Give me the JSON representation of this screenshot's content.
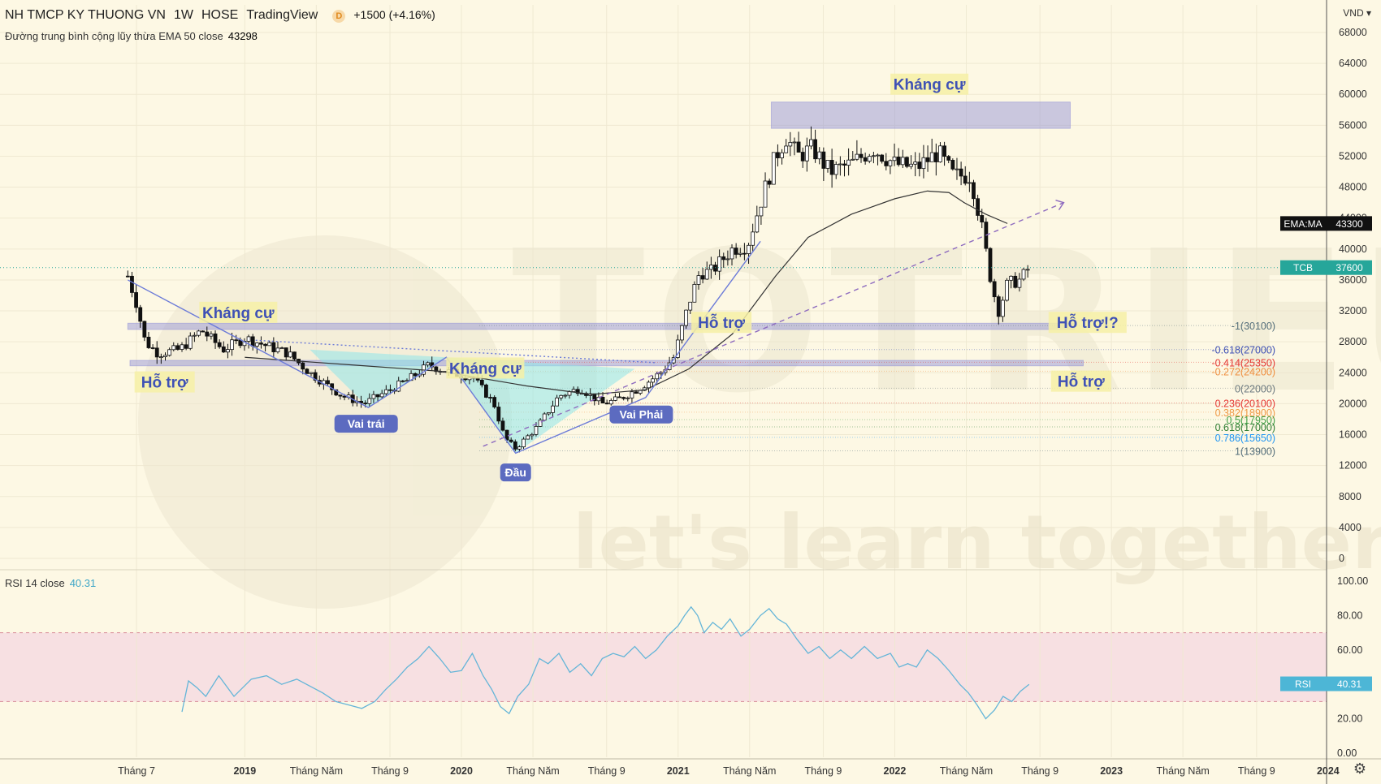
{
  "header": {
    "symbol": "NH TMCP KY THUONG VN",
    "interval": "1W",
    "exchange": "HOSE",
    "source": "TradingView",
    "badge": "D",
    "change": "+1500 (+4.16%)",
    "ema_label": "Đường trung bình cộng lũy thừa EMA 50 close",
    "ema_value": "43298",
    "rsi_label": "RSI 14 close",
    "rsi_value": "40.31",
    "currency": "VND",
    "settings_icon": "gear-icon"
  },
  "chart_data": [
    {
      "type": "candlestick",
      "title": "NH TMCP KY THUONG VN · 1W · HOSE",
      "y_ticks": [
        0,
        4000,
        8000,
        12000,
        16000,
        20000,
        24000,
        28000,
        32000,
        36000,
        40000,
        44000,
        48000,
        52000,
        56000,
        60000,
        64000,
        68000
      ],
      "ylim": [
        0,
        68000
      ],
      "x_ticks": [
        "Tháng 7",
        "2019",
        "Tháng Năm",
        "Tháng 9",
        "2020",
        "Tháng Năm",
        "Tháng 9",
        "2021",
        "Tháng Năm",
        "Tháng 9",
        "2022",
        "Tháng Năm",
        "Tháng 9",
        "2023",
        "Tháng Năm",
        "Tháng 9",
        "2024"
      ],
      "x_bold": [
        "2019",
        "2020",
        "2021",
        "2022",
        "2023",
        "2024"
      ],
      "price_anchors": [
        [
          2018.46,
          36500
        ],
        [
          2018.5,
          33000
        ],
        [
          2018.54,
          28000
        ],
        [
          2018.6,
          26500
        ],
        [
          2018.7,
          27000
        ],
        [
          2018.8,
          29500
        ],
        [
          2018.9,
          27000
        ],
        [
          2019.0,
          28500
        ],
        [
          2019.1,
          27500
        ],
        [
          2019.2,
          26500
        ],
        [
          2019.3,
          24000
        ],
        [
          2019.45,
          21000
        ],
        [
          2019.55,
          20000
        ],
        [
          2019.65,
          21500
        ],
        [
          2019.75,
          23000
        ],
        [
          2019.85,
          25000
        ],
        [
          2019.95,
          24000
        ],
        [
          2020.05,
          23500
        ],
        [
          2020.15,
          20000
        ],
        [
          2020.2,
          15500
        ],
        [
          2020.25,
          14200
        ],
        [
          2020.35,
          17000
        ],
        [
          2020.45,
          21000
        ],
        [
          2020.55,
          22000
        ],
        [
          2020.65,
          20000
        ],
        [
          2020.72,
          20500
        ],
        [
          2020.82,
          22000
        ],
        [
          2020.92,
          24000
        ],
        [
          2020.98,
          26000
        ],
        [
          2021.05,
          33000
        ],
        [
          2021.1,
          37000
        ],
        [
          2021.15,
          37000
        ],
        [
          2021.25,
          40000
        ],
        [
          2021.32,
          40500
        ],
        [
          2021.38,
          46000
        ],
        [
          2021.45,
          52000
        ],
        [
          2021.5,
          54500
        ],
        [
          2021.55,
          52000
        ],
        [
          2021.62,
          53000
        ],
        [
          2021.7,
          50000
        ],
        [
          2021.8,
          51000
        ],
        [
          2021.9,
          53000
        ],
        [
          2022.0,
          51000
        ],
        [
          2022.1,
          50500
        ],
        [
          2022.2,
          52500
        ],
        [
          2022.27,
          49500
        ],
        [
          2022.35,
          49500
        ],
        [
          2022.4,
          43000
        ],
        [
          2022.45,
          35000
        ],
        [
          2022.48,
          32000
        ],
        [
          2022.52,
          35500
        ],
        [
          2022.58,
          36000
        ],
        [
          2022.62,
          37600
        ]
      ],
      "last_price": 37600,
      "current_price_label": "TCB",
      "current_price_value": "37600",
      "ema_tag_label": "EMA:MA",
      "ema_tag_value": "43300",
      "ema50": [
        [
          2019.0,
          26000
        ],
        [
          2019.5,
          25000
        ],
        [
          2019.9,
          24200
        ],
        [
          2020.3,
          22300
        ],
        [
          2020.6,
          21200
        ],
        [
          2020.85,
          21800
        ],
        [
          2021.05,
          24500
        ],
        [
          2021.25,
          29000
        ],
        [
          2021.45,
          36500
        ],
        [
          2021.6,
          41500
        ],
        [
          2021.8,
          44500
        ],
        [
          2022.0,
          46500
        ],
        [
          2022.15,
          47500
        ],
        [
          2022.25,
          47300
        ],
        [
          2022.32,
          46000
        ],
        [
          2022.42,
          44500
        ],
        [
          2022.52,
          43300
        ]
      ],
      "fibonacci": [
        {
          "label": "-1(30100)",
          "value": 30100,
          "color": "#546e7a"
        },
        {
          "label": "-0.618(27000)",
          "value": 27000,
          "color": "#3f51b5"
        },
        {
          "label": "-0.414(25350)",
          "value": 25350,
          "color": "#e53935"
        },
        {
          "label": "-0.272(24200)",
          "value": 24200,
          "color": "#ef8f40"
        },
        {
          "label": "0(22000)",
          "value": 22000,
          "color": "#6d7a80"
        },
        {
          "label": "0.236(20100)",
          "value": 20100,
          "color": "#e53935"
        },
        {
          "label": "0.382(18900)",
          "value": 18900,
          "color": "#ef9a47"
        },
        {
          "label": "0.5(17950)",
          "value": 17950,
          "color": "#43a047"
        },
        {
          "label": "0.618(17000)",
          "value": 17000,
          "color": "#2e7d32"
        },
        {
          "label": "0.786(15650)",
          "value": 15650,
          "color": "#2196f3"
        },
        {
          "label": "1(13900)",
          "value": 13900,
          "color": "#546e7a"
        }
      ],
      "zones": [
        {
          "from": 2018.46,
          "to": 2022.83,
          "low": 29600,
          "high": 30400,
          "color": "#8c8cd8"
        },
        {
          "from": 2018.47,
          "to": 2022.87,
          "low": 24900,
          "high": 25600,
          "color": "#8c8cd8"
        },
        {
          "from": 2021.43,
          "to": 2022.81,
          "low": 55600,
          "high": 59000,
          "color": "#8c8cd8"
        }
      ],
      "pattern_fills": [
        {
          "points": [
            [
              2019.3,
              27000
            ],
            [
              2019.57,
              19500
            ],
            [
              2019.8,
              23500
            ],
            [
              2019.93,
              26000
            ]
          ],
          "color": "#8fe6ea"
        },
        {
          "points": [
            [
              2019.93,
              26000
            ],
            [
              2020.25,
              13600
            ],
            [
              2020.8,
              24500
            ]
          ],
          "color": "#8fe6ea"
        }
      ],
      "pattern_lines": [
        {
          "points": [
            [
              2018.46,
              36000
            ],
            [
              2019.57,
              19500
            ],
            [
              2019.93,
              26000
            ],
            [
              2020.25,
              13600
            ],
            [
              2020.85,
              20800
            ],
            [
              2021.38,
              41000
            ]
          ],
          "color": "#6c7bd8",
          "dash": false
        },
        {
          "points": [
            [
              2019.05,
              28200
            ],
            [
              2020.9,
              25300
            ]
          ],
          "color": "#6c7bd8",
          "dash": "2,3"
        },
        {
          "points": [
            [
              2020.1,
              14500
            ],
            [
              2022.78,
              46000
            ]
          ],
          "color": "#8e6bbf",
          "dash": "6,5"
        }
      ],
      "annotations": [
        {
          "text": "Kháng cự",
          "x": 2022.16,
          "y": 61000,
          "style": "big"
        },
        {
          "text": "Kháng cự",
          "x": 2018.97,
          "y": 31500,
          "style": "big"
        },
        {
          "text": "Hỗ trợ",
          "x": 2018.63,
          "y": 22500,
          "style": "big"
        },
        {
          "text": "Kháng cự",
          "x": 2020.11,
          "y": 24300,
          "style": "big"
        },
        {
          "text": "Hỗ trợ",
          "x": 2021.2,
          "y": 30200,
          "style": "big"
        },
        {
          "text": "Hỗ trợ!?",
          "x": 2022.89,
          "y": 30200,
          "style": "big"
        },
        {
          "text": "Hỗ trợ",
          "x": 2022.86,
          "y": 22600,
          "style": "big"
        },
        {
          "text": "Vai trái",
          "x": 2019.56,
          "y": 17300,
          "style": "pill"
        },
        {
          "text": "Vai Phải",
          "x": 2020.83,
          "y": 18500,
          "style": "pill"
        },
        {
          "text": "Đầu",
          "x": 2020.25,
          "y": 11000,
          "style": "pill"
        }
      ],
      "watermark_text": "let's learn together",
      "watermark_brand": "TOTRIEU"
    },
    {
      "type": "line",
      "title": "RSI 14 close",
      "series_name": "RSI",
      "y_ticks": [
        "0.00",
        "20.00",
        "40.00",
        "60.00",
        "80.00",
        "100.00"
      ],
      "ylim": [
        0,
        100
      ],
      "band": [
        30,
        70
      ],
      "last_value": "40.31",
      "points": [
        [
          2018.71,
          24
        ],
        [
          2018.74,
          42
        ],
        [
          2018.78,
          38
        ],
        [
          2018.82,
          33
        ],
        [
          2018.88,
          45
        ],
        [
          2018.95,
          33
        ],
        [
          2019.03,
          43
        ],
        [
          2019.1,
          45
        ],
        [
          2019.17,
          40
        ],
        [
          2019.24,
          43
        ],
        [
          2019.3,
          39
        ],
        [
          2019.36,
          35
        ],
        [
          2019.42,
          30
        ],
        [
          2019.48,
          28
        ],
        [
          2019.54,
          26
        ],
        [
          2019.6,
          30
        ],
        [
          2019.65,
          37
        ],
        [
          2019.7,
          43
        ],
        [
          2019.75,
          50
        ],
        [
          2019.8,
          55
        ],
        [
          2019.85,
          62
        ],
        [
          2019.9,
          55
        ],
        [
          2019.95,
          47
        ],
        [
          2020.0,
          48
        ],
        [
          2020.05,
          58
        ],
        [
          2020.1,
          45
        ],
        [
          2020.14,
          37
        ],
        [
          2020.18,
          27
        ],
        [
          2020.22,
          23
        ],
        [
          2020.26,
          33
        ],
        [
          2020.31,
          40
        ],
        [
          2020.36,
          55
        ],
        [
          2020.4,
          52
        ],
        [
          2020.45,
          58
        ],
        [
          2020.5,
          47
        ],
        [
          2020.55,
          52
        ],
        [
          2020.6,
          45
        ],
        [
          2020.65,
          55
        ],
        [
          2020.7,
          58
        ],
        [
          2020.75,
          56
        ],
        [
          2020.8,
          62
        ],
        [
          2020.85,
          55
        ],
        [
          2020.9,
          60
        ],
        [
          2020.95,
          68
        ],
        [
          2021.0,
          74
        ],
        [
          2021.03,
          80
        ],
        [
          2021.06,
          85
        ],
        [
          2021.09,
          80
        ],
        [
          2021.12,
          70
        ],
        [
          2021.16,
          76
        ],
        [
          2021.2,
          72
        ],
        [
          2021.24,
          78
        ],
        [
          2021.29,
          68
        ],
        [
          2021.33,
          72
        ],
        [
          2021.38,
          80
        ],
        [
          2021.42,
          84
        ],
        [
          2021.46,
          78
        ],
        [
          2021.5,
          75
        ],
        [
          2021.55,
          66
        ],
        [
          2021.6,
          58
        ],
        [
          2021.65,
          62
        ],
        [
          2021.7,
          55
        ],
        [
          2021.75,
          60
        ],
        [
          2021.8,
          55
        ],
        [
          2021.86,
          62
        ],
        [
          2021.92,
          55
        ],
        [
          2021.98,
          58
        ],
        [
          2022.02,
          50
        ],
        [
          2022.06,
          52
        ],
        [
          2022.1,
          50
        ],
        [
          2022.15,
          60
        ],
        [
          2022.2,
          55
        ],
        [
          2022.25,
          48
        ],
        [
          2022.3,
          40
        ],
        [
          2022.34,
          35
        ],
        [
          2022.38,
          28
        ],
        [
          2022.42,
          20
        ],
        [
          2022.46,
          25
        ],
        [
          2022.5,
          33
        ],
        [
          2022.54,
          30
        ],
        [
          2022.58,
          36
        ],
        [
          2022.62,
          40
        ]
      ]
    }
  ]
}
